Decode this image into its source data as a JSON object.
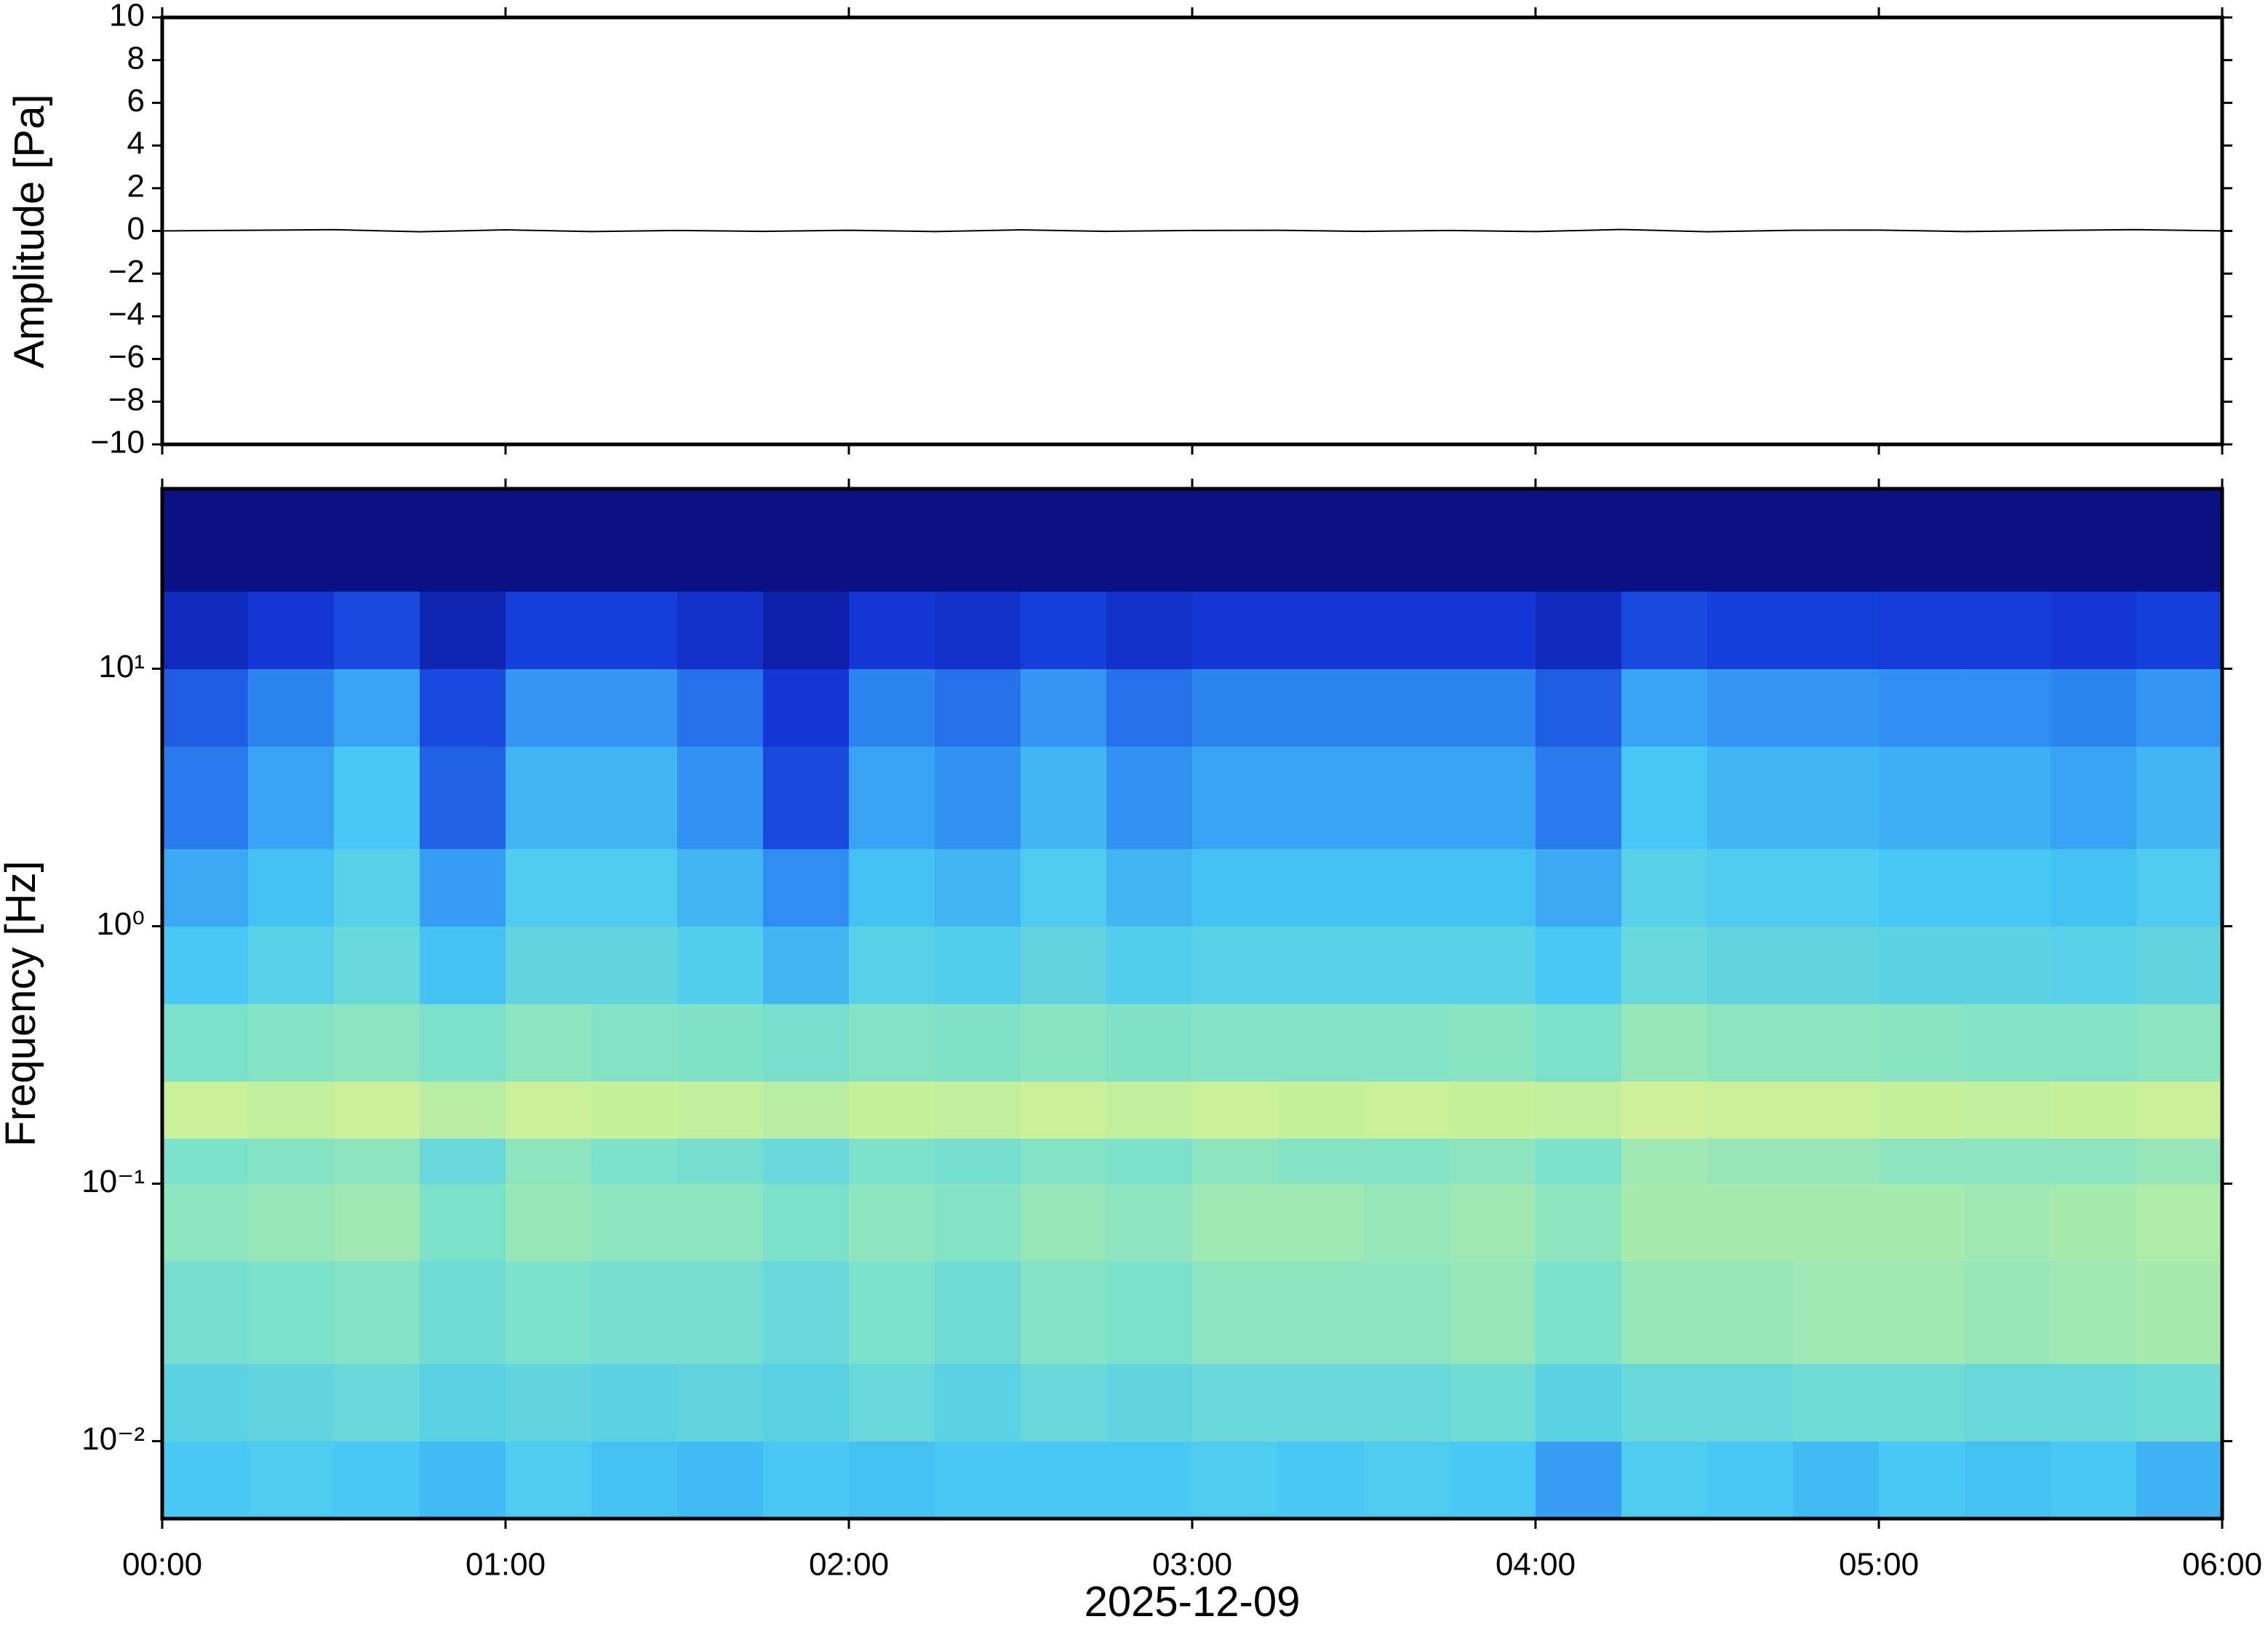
{
  "chart_data": [
    {
      "type": "line",
      "ylabel": "Amplitude [Pa]",
      "color": "#000000",
      "xlim": [
        0,
        6
      ],
      "x": [
        0,
        0.25,
        0.5,
        0.75,
        1,
        1.25,
        1.5,
        1.75,
        2,
        2.25,
        2.5,
        2.75,
        3,
        3.25,
        3.5,
        3.75,
        4,
        4.25,
        4.5,
        4.75,
        5,
        5.25,
        5.5,
        5.75,
        6
      ],
      "values": [
        0,
        0.03,
        0.06,
        -0.04,
        0.05,
        -0.03,
        0.02,
        -0.02,
        0.03,
        -0.03,
        0.05,
        -0.02,
        0.02,
        0.03,
        -0.02,
        0.02,
        -0.03,
        0.07,
        -0.04,
        0.03,
        0.04,
        -0.03,
        0.02,
        0.06,
        0
      ],
      "ylim": [
        -10,
        10
      ],
      "yticks": [
        {
          "value": -10,
          "label": "−10"
        },
        {
          "value": -8,
          "label": "−8"
        },
        {
          "value": -6,
          "label": "−6"
        },
        {
          "value": -4,
          "label": "−4"
        },
        {
          "value": -2,
          "label": "−2"
        },
        0,
        2,
        4,
        6,
        8,
        10
      ]
    },
    {
      "type": "heatmap",
      "ylabel": "Frequency [Hz]",
      "xlabel": "2025-12-09",
      "xlim": [
        0,
        6
      ],
      "xticks": [
        {
          "value": 0,
          "label": "00:00"
        },
        {
          "value": 1,
          "label": "01:00"
        },
        {
          "value": 2,
          "label": "02:00"
        },
        {
          "value": 3,
          "label": "03:00"
        },
        {
          "value": 4,
          "label": "04:00"
        },
        {
          "value": 5,
          "label": "05:00"
        },
        {
          "value": 6,
          "label": "06:00"
        }
      ],
      "yscale": "log",
      "ylim": [
        0.005,
        50
      ],
      "yticks": [
        {
          "value": 0.01,
          "label": "10⁻²"
        },
        {
          "value": 0.1,
          "label": "10⁻¹"
        },
        {
          "value": 1,
          "label": "10⁰"
        },
        {
          "value": 10,
          "label": "10¹"
        }
      ],
      "x": [
        0,
        0.25,
        0.5,
        0.75,
        1,
        1.25,
        1.5,
        1.75,
        2,
        2.25,
        2.5,
        2.75,
        3,
        3.25,
        3.5,
        3.75,
        4,
        4.25,
        4.5,
        4.75,
        5,
        5.25,
        5.5,
        5.75,
        6
      ],
      "y": [
        0.005,
        0.01,
        0.02,
        0.05,
        0.1,
        0.15,
        0.25,
        0.5,
        1,
        2,
        5,
        10,
        20,
        50
      ],
      "zlim": [
        0,
        1
      ],
      "colormap": [
        "#0a0a7a",
        "#1338d8",
        "#2f8cf2",
        "#48c8f4",
        "#7ee2c8",
        "#c8f09a",
        "#f2f08c"
      ],
      "z": [
        [
          0.5,
          0.52,
          0.5,
          0.46,
          0.52,
          0.48,
          0.46,
          0.5,
          0.48,
          0.5,
          0.5,
          0.5,
          0.52,
          0.5,
          0.52,
          0.5,
          0.38,
          0.52,
          0.5,
          0.46,
          0.5,
          0.48,
          0.5,
          0.44
        ],
        [
          0.56,
          0.58,
          0.6,
          0.56,
          0.58,
          0.56,
          0.58,
          0.56,
          0.6,
          0.56,
          0.6,
          0.58,
          0.6,
          0.6,
          0.6,
          0.62,
          0.56,
          0.6,
          0.6,
          0.62,
          0.62,
          0.6,
          0.6,
          0.62
        ],
        [
          0.64,
          0.66,
          0.68,
          0.62,
          0.66,
          0.64,
          0.64,
          0.6,
          0.66,
          0.62,
          0.68,
          0.66,
          0.7,
          0.7,
          0.7,
          0.72,
          0.66,
          0.72,
          0.72,
          0.74,
          0.74,
          0.72,
          0.74,
          0.76
        ],
        [
          0.7,
          0.72,
          0.74,
          0.66,
          0.72,
          0.7,
          0.7,
          0.66,
          0.7,
          0.68,
          0.72,
          0.7,
          0.74,
          0.74,
          0.72,
          0.74,
          0.7,
          0.76,
          0.76,
          0.76,
          0.76,
          0.74,
          0.76,
          0.78
        ],
        [
          0.66,
          0.68,
          0.7,
          0.6,
          0.7,
          0.66,
          0.64,
          0.6,
          0.66,
          0.64,
          0.68,
          0.66,
          0.7,
          0.68,
          0.68,
          0.7,
          0.66,
          0.74,
          0.72,
          0.72,
          0.7,
          0.7,
          0.7,
          0.72
        ],
        [
          0.84,
          0.82,
          0.85,
          0.8,
          0.84,
          0.83,
          0.82,
          0.8,
          0.83,
          0.82,
          0.84,
          0.82,
          0.84,
          0.83,
          0.84,
          0.83,
          0.82,
          0.86,
          0.84,
          0.84,
          0.83,
          0.82,
          0.83,
          0.84
        ],
        [
          0.66,
          0.68,
          0.7,
          0.66,
          0.7,
          0.68,
          0.67,
          0.65,
          0.68,
          0.67,
          0.69,
          0.67,
          0.68,
          0.68,
          0.68,
          0.69,
          0.66,
          0.72,
          0.7,
          0.7,
          0.69,
          0.68,
          0.68,
          0.7
        ],
        [
          0.5,
          0.55,
          0.6,
          0.48,
          0.58,
          0.58,
          0.53,
          0.45,
          0.55,
          0.53,
          0.58,
          0.53,
          0.55,
          0.55,
          0.55,
          0.55,
          0.5,
          0.6,
          0.58,
          0.58,
          0.56,
          0.56,
          0.55,
          0.58
        ],
        [
          0.41,
          0.48,
          0.55,
          0.38,
          0.52,
          0.52,
          0.45,
          0.34,
          0.48,
          0.45,
          0.52,
          0.45,
          0.48,
          0.48,
          0.48,
          0.48,
          0.41,
          0.55,
          0.52,
          0.52,
          0.5,
          0.5,
          0.48,
          0.52
        ],
        [
          0.3,
          0.4,
          0.5,
          0.25,
          0.45,
          0.45,
          0.35,
          0.2,
          0.4,
          0.35,
          0.45,
          0.35,
          0.4,
          0.4,
          0.4,
          0.4,
          0.3,
          0.5,
          0.45,
          0.45,
          0.43,
          0.43,
          0.4,
          0.45
        ],
        [
          0.24,
          0.32,
          0.4,
          0.2,
          0.36,
          0.36,
          0.28,
          0.16,
          0.32,
          0.28,
          0.36,
          0.28,
          0.32,
          0.32,
          0.32,
          0.32,
          0.24,
          0.4,
          0.36,
          0.36,
          0.34,
          0.34,
          0.32,
          0.36
        ],
        [
          0.12,
          0.16,
          0.2,
          0.1,
          0.18,
          0.18,
          0.14,
          0.08,
          0.16,
          0.14,
          0.18,
          0.14,
          0.16,
          0.16,
          0.16,
          0.16,
          0.12,
          0.2,
          0.18,
          0.18,
          0.17,
          0.17,
          0.16,
          0.18
        ],
        [
          0.02,
          0.02,
          0.02,
          0.02,
          0.02,
          0.02,
          0.02,
          0.02,
          0.02,
          0.02,
          0.02,
          0.02,
          0.02,
          0.02,
          0.02,
          0.02,
          0.02,
          0.02,
          0.02,
          0.02,
          0.02,
          0.02,
          0.02,
          0.02
        ]
      ]
    }
  ]
}
